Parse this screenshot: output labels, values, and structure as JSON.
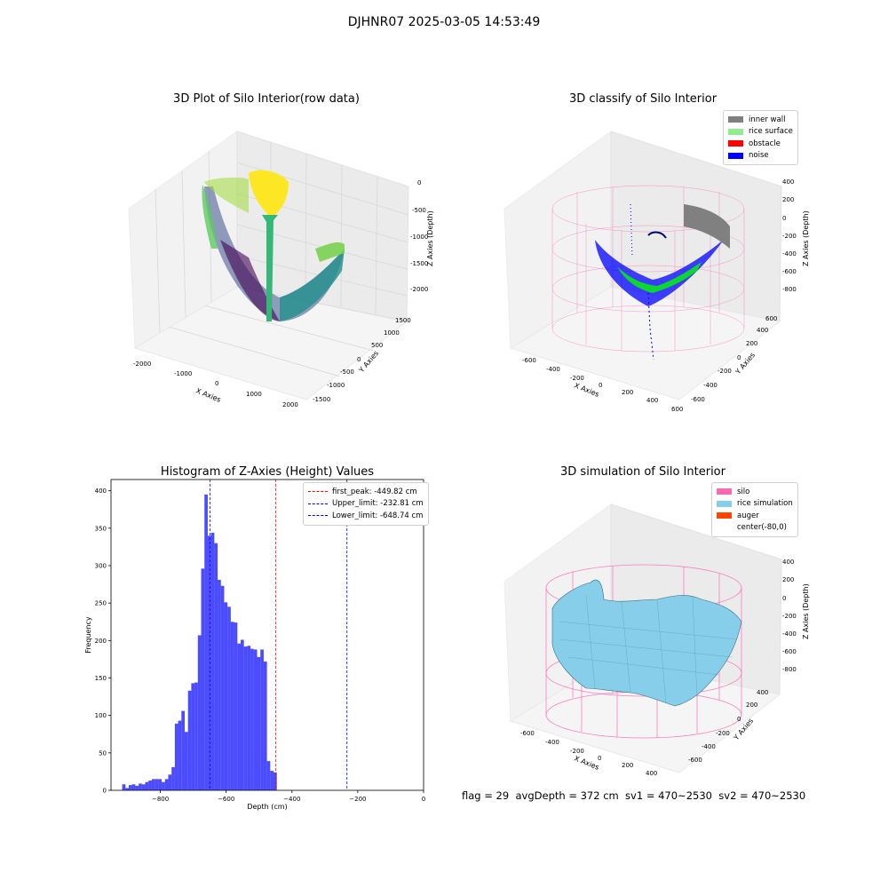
{
  "suptitle": "DJHNR07 2025-03-05 14:53:49",
  "footer": "flag = 29  avgDepth = 372 cm  sv1 = 470~2530  sv2 = 470~2530",
  "panels": {
    "raw": {
      "title": "3D Plot of Silo Interior(row data)",
      "xlabel": "X Axies",
      "ylabel": "Y Axies",
      "zlabel": "Z Axies (Depth)",
      "xticks": [
        "-2000",
        "-1000",
        "0",
        "1000",
        "2000"
      ],
      "yticks": [
        "-1500",
        "-1000",
        "-500",
        "0",
        "500",
        "1000",
        "1500"
      ],
      "zticks": [
        "0",
        "-500",
        "-1000",
        "-1500",
        "-2000"
      ]
    },
    "classify": {
      "title": "3D classify of Silo Interior",
      "xlabel": "X Axies",
      "ylabel": "Y Axies",
      "zlabel": "Z Axies (Depth)",
      "xticks": [
        "-600",
        "-400",
        "-200",
        "0",
        "200",
        "400",
        "600"
      ],
      "yticks": [
        "-600",
        "-400",
        "-200",
        "0",
        "200",
        "400",
        "600"
      ],
      "zticks": [
        "400",
        "200",
        "0",
        "-200",
        "-400",
        "-600",
        "-800"
      ],
      "legend": [
        {
          "label": "inner wall",
          "color": "#808080"
        },
        {
          "label": "rice surface",
          "color": "#90ee90"
        },
        {
          "label": "obstacle",
          "color": "#ff0000"
        },
        {
          "label": "noise",
          "color": "#0000ff"
        }
      ]
    },
    "simulation": {
      "title": "3D simulation of Silo Interior",
      "xlabel": "X Axies",
      "ylabel": "Y Axies",
      "zlabel": "Z Axies (Depth)",
      "xticks": [
        "-600",
        "-400",
        "-200",
        "0",
        "200",
        "400"
      ],
      "yticks": [
        "-600",
        "-400",
        "-200",
        "0",
        "200",
        "400",
        "600"
      ],
      "zticks": [
        "400",
        "200",
        "0",
        "-200",
        "-400",
        "-600",
        "-800"
      ],
      "legend": [
        {
          "label": "silo",
          "color": "#ff69b4"
        },
        {
          "label": "rice simulation",
          "color": "#87ceeb"
        },
        {
          "label": "auger",
          "color": "#ff4500"
        },
        {
          "label": "center(-80,0)",
          "color": "#ffffff"
        }
      ]
    }
  },
  "chart_data": [
    {
      "type": "bar",
      "title": "Histogram of Z-Axies (Height) Values",
      "xlabel": "Depth (cm)",
      "ylabel": "Frequency",
      "xlim": [
        -950,
        0
      ],
      "ylim": [
        0,
        415
      ],
      "xticks": [
        -800,
        -600,
        -400,
        -200,
        0
      ],
      "yticks": [
        0,
        50,
        100,
        150,
        200,
        250,
        300,
        350,
        400
      ],
      "color": "#0000ff",
      "bin_start": -916,
      "bin_width": 10,
      "values": [
        8,
        3,
        7,
        8,
        6,
        9,
        8,
        11,
        13,
        15,
        15,
        15,
        11,
        15,
        21,
        31,
        89,
        93,
        106,
        78,
        133,
        143,
        144,
        207,
        296,
        395,
        340,
        344,
        330,
        281,
        273,
        251,
        245,
        225,
        224,
        196,
        201,
        192,
        193,
        189,
        188,
        178,
        188,
        172,
        39,
        26,
        24
      ],
      "vlines": [
        {
          "label": "first_peak: -449.82 cm",
          "x": -449.82,
          "color": "#ff0000"
        },
        {
          "label": "Upper_limit: -232.81 cm",
          "x": -232.81,
          "color": "#0000ff"
        },
        {
          "label": "Lower_limit: -648.74 cm",
          "x": -648.74,
          "color": "#0000ff"
        }
      ]
    }
  ]
}
